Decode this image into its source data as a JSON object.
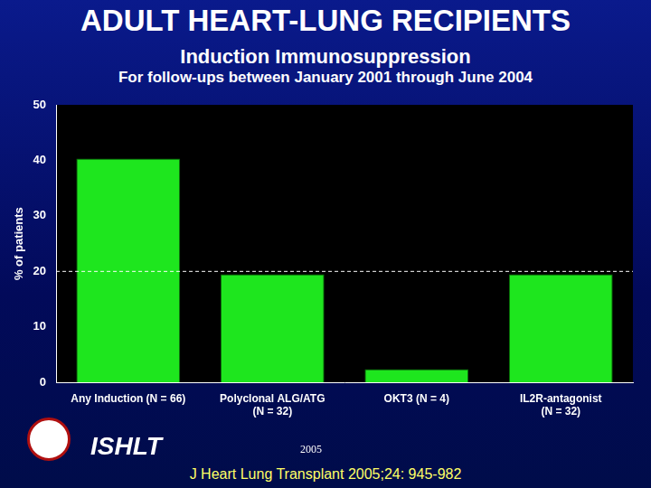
{
  "chart_data": {
    "type": "bar",
    "title": "ADULT HEART-LUNG RECIPIENTS",
    "subtitle": "Induction Immunosuppression",
    "subsubtitle": "For follow-ups between January 2001 through June 2004",
    "y_label": "% of patients",
    "categories": [
      "Any Induction (N = 66)",
      [
        "Polyclonal ALG/ATG",
        "(N = 32)"
      ],
      "OKT3 (N = 4)",
      [
        "IL2R-antagonist",
        "(N = 32)"
      ]
    ],
    "values": [
      40.3,
      19.5,
      2.4,
      19.5
    ],
    "color": "#1ee61e",
    "ylim": [
      0,
      50
    ],
    "yticks": [
      0,
      10,
      20,
      30,
      40,
      50
    ],
    "grid": false,
    "reference_line": 20,
    "logo_text": "ISHLT",
    "year_note": "2005",
    "source": "J Heart Lung Transplant 2005;24: 945-982"
  }
}
